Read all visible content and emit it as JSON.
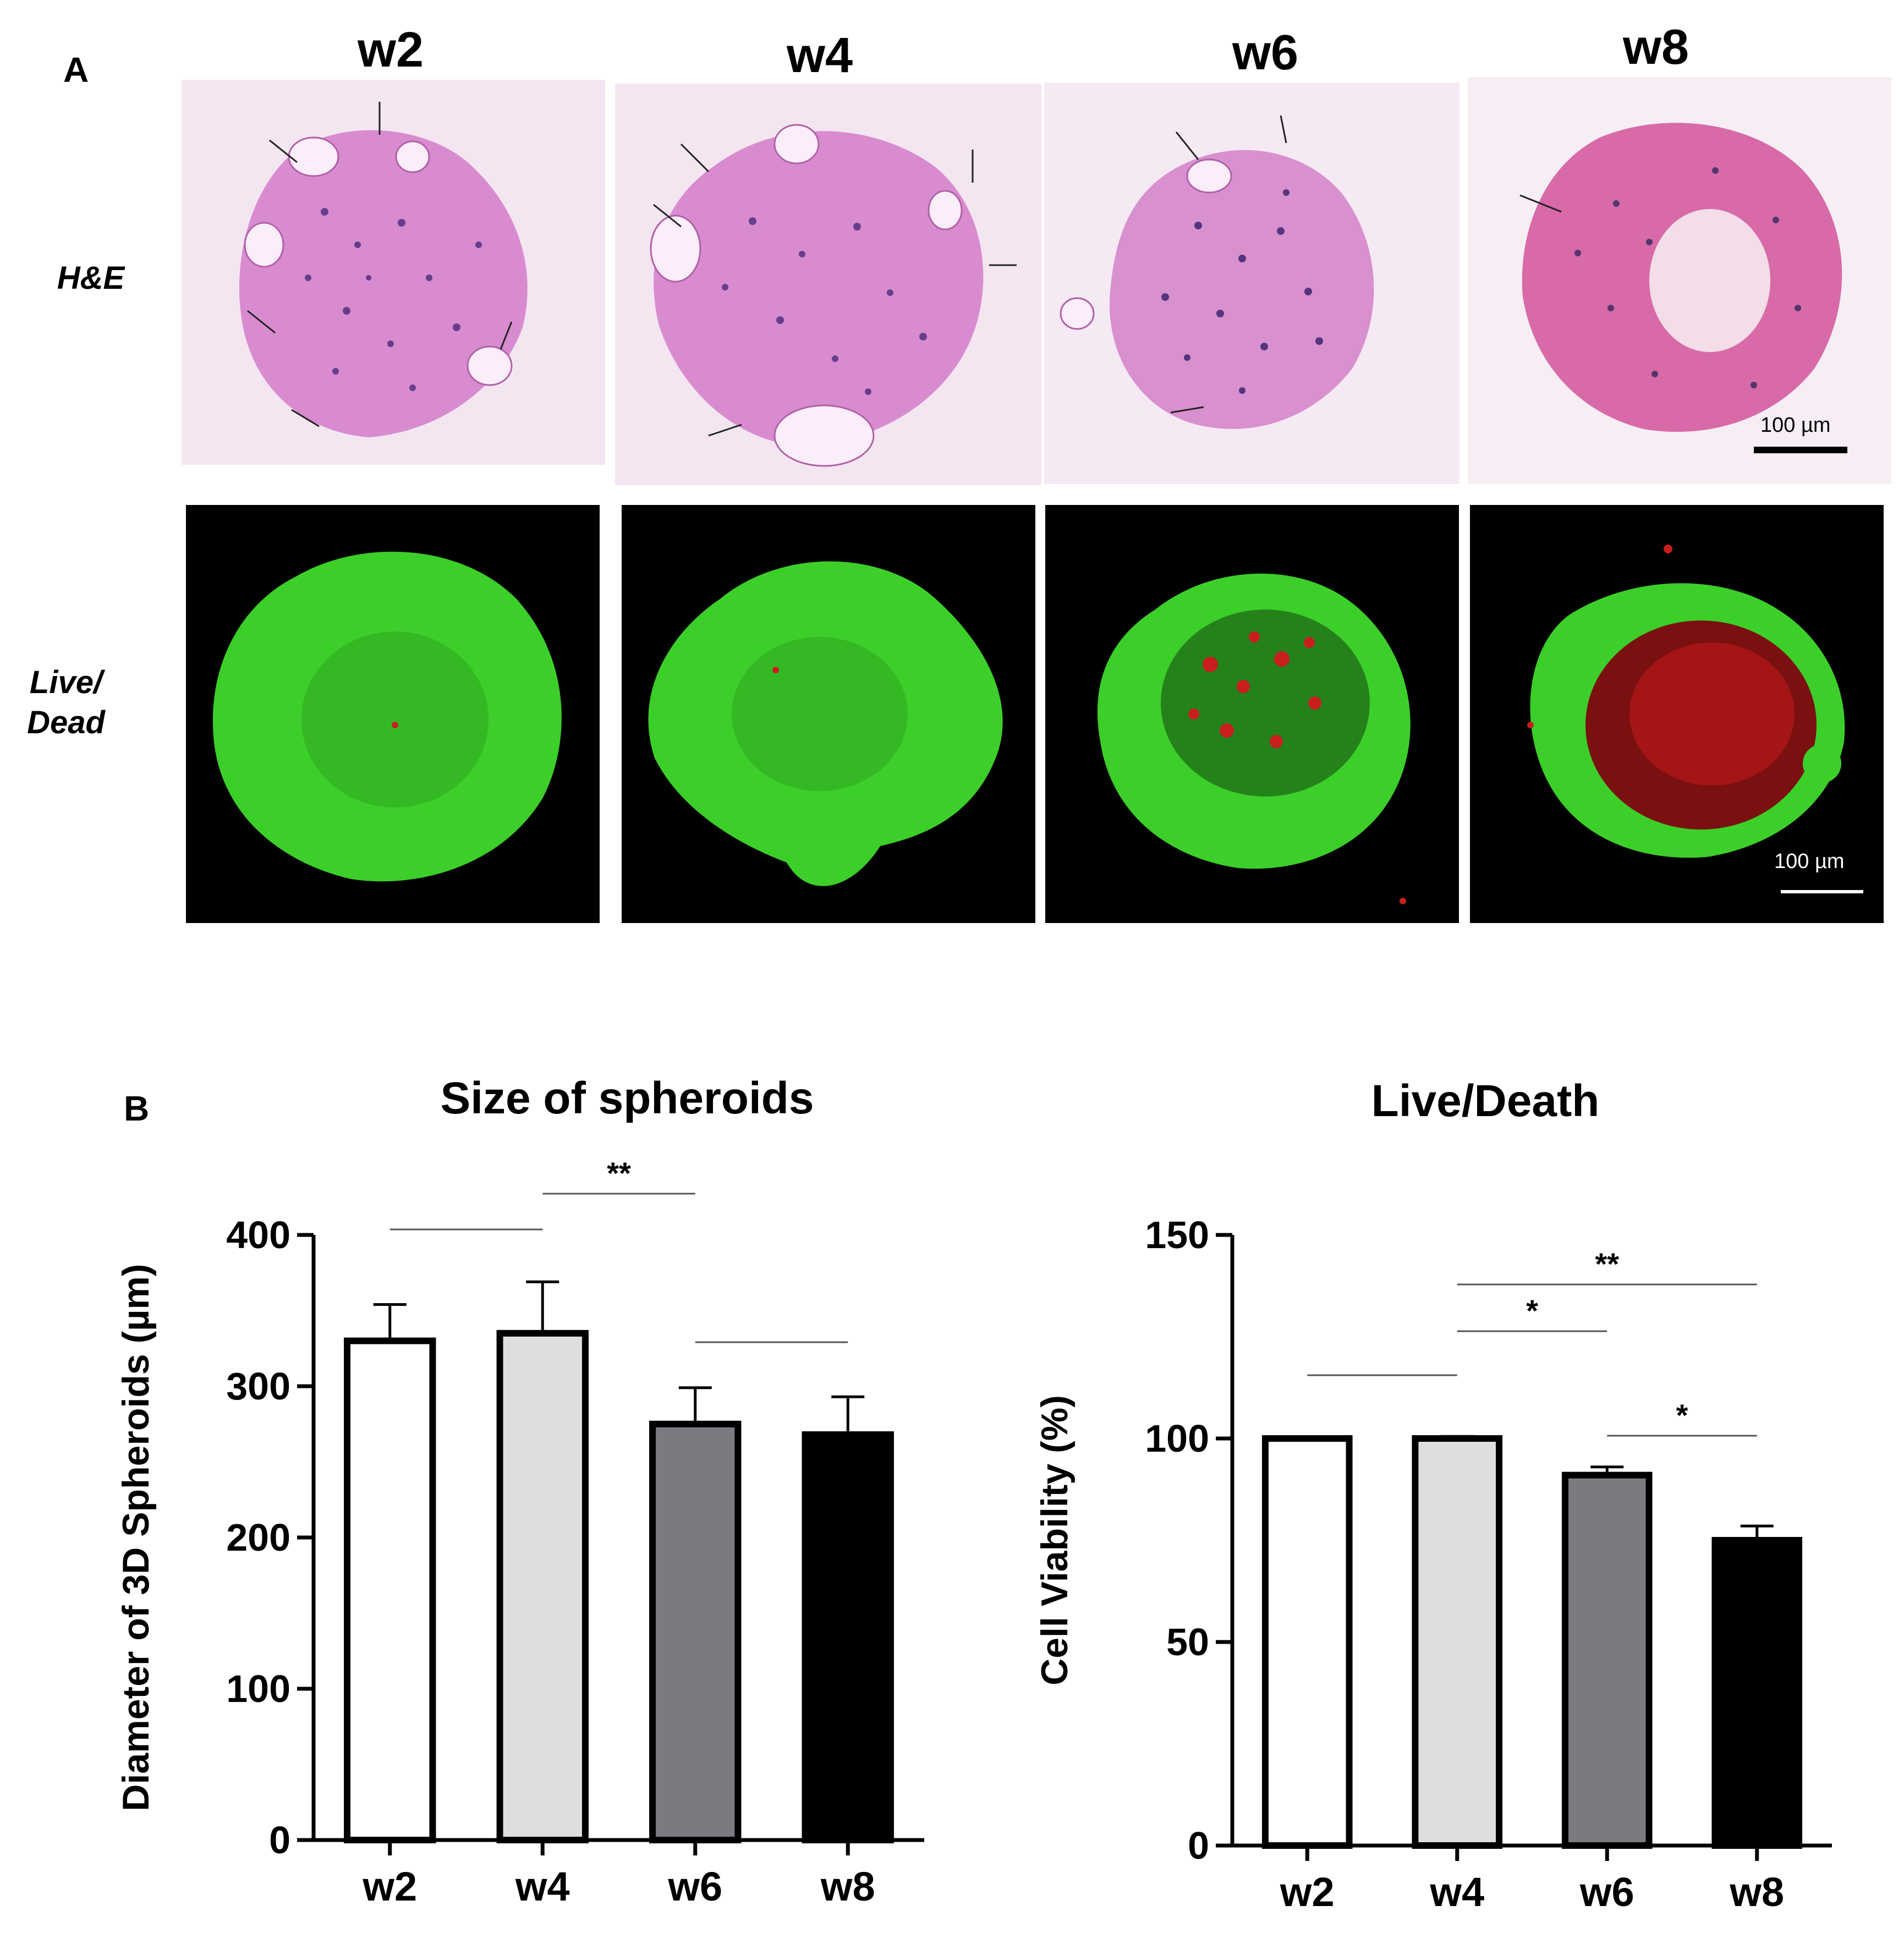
{
  "panel_a": {
    "letter": "A",
    "columns": [
      "w2",
      "w4",
      "w6",
      "w8"
    ],
    "rows": {
      "he": "H&E",
      "live_dead": [
        "Live/",
        "Dead"
      ]
    },
    "scale_bar_he": "100 µm",
    "scale_bar_ld": "100 µm",
    "colors": {
      "he_background": "#f4e6f1",
      "he_tissue": "#d98bd0",
      "he_nuclei": "#4a2a7a",
      "ld_background": "#000000",
      "ld_live": "#3ccf2a",
      "ld_dead": "#c81e1e"
    }
  },
  "panel_b": {
    "letter": "B"
  },
  "chart_data": [
    {
      "type": "bar",
      "title": "Size of spheroids",
      "xlabel": "",
      "ylabel": "Diameter of 3D Spheroids (µm)",
      "categories": [
        "w2",
        "w4",
        "w6",
        "w8"
      ],
      "values": [
        330,
        335,
        275,
        268
      ],
      "errors": [
        24,
        34,
        24,
        25
      ],
      "bar_colors": [
        "#ffffff",
        "#dedede",
        "#7a7a80",
        "#000000"
      ],
      "ylim": [
        0,
        400
      ],
      "yticks": [
        0,
        100,
        200,
        300,
        400
      ],
      "significance": [
        {
          "from": "w2",
          "to": "w4",
          "label": ""
        },
        {
          "from": "w4",
          "to": "w6",
          "label": "**"
        },
        {
          "from": "w6",
          "to": "w8",
          "label": ""
        }
      ]
    },
    {
      "type": "bar",
      "title": "Live/Death",
      "xlabel": "",
      "ylabel": "Cell Viability (%)",
      "categories": [
        "w2",
        "w4",
        "w6",
        "w8"
      ],
      "values": [
        100,
        100,
        91,
        75
      ],
      "errors": [
        0,
        0.5,
        2,
        3.5
      ],
      "bar_colors": [
        "#ffffff",
        "#dedede",
        "#7a7a80",
        "#000000"
      ],
      "ylim": [
        0,
        150
      ],
      "yticks": [
        0,
        50,
        100,
        150
      ],
      "significance": [
        {
          "from": "w2",
          "to": "w4",
          "label": ""
        },
        {
          "from": "w4",
          "to": "w6",
          "label": "*"
        },
        {
          "from": "w4",
          "to": "w8",
          "label": "**"
        },
        {
          "from": "w6",
          "to": "w8",
          "label": "*"
        }
      ]
    }
  ]
}
